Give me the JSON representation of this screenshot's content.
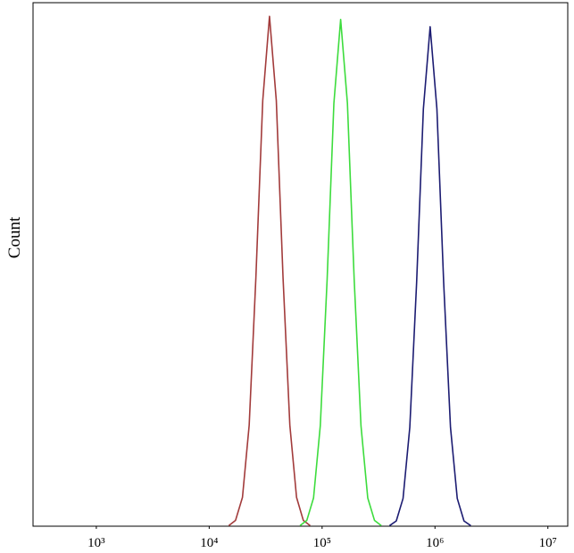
{
  "chart_data": {
    "type": "line",
    "y_label": "Count",
    "xscale": "log",
    "xlim": [
      275,
      15000000
    ],
    "ylim": [
      0,
      100
    ],
    "xticks": [
      {
        "value": 1000,
        "label": "10³"
      },
      {
        "value": 10000,
        "label": "10⁴"
      },
      {
        "value": 100000,
        "label": "10⁵"
      },
      {
        "value": 1000000,
        "label": "10⁶"
      },
      {
        "value": 10000000,
        "label": "10⁷"
      }
    ],
    "series": [
      {
        "color": "#a23b3b",
        "x": [
          14900,
          17100,
          19700,
          22600,
          25900,
          29800,
          34200,
          39300,
          45100,
          51800,
          59400,
          68200,
          78400
        ],
        "values": [
          0.1,
          1.1,
          5.5,
          19.3,
          47.4,
          81.3,
          97.4,
          81.3,
          47.4,
          19.3,
          5.5,
          1.1,
          0.1
        ]
      },
      {
        "color": "#3ddc3d",
        "x": [
          63700,
          73200,
          84000,
          96400,
          110800,
          127200,
          146000,
          167600,
          192400,
          221000,
          253700,
          291300,
          334500
        ],
        "values": [
          0.1,
          1.1,
          5.4,
          19.2,
          47.1,
          80.8,
          96.8,
          80.8,
          47.1,
          19.2,
          5.4,
          1.1,
          0.1
        ]
      },
      {
        "color": "#1c1c72",
        "x": [
          395500,
          454100,
          521300,
          598400,
          687400,
          789200,
          906000,
          1040000,
          1194000,
          1372000,
          1575000,
          1807000,
          2076000
        ],
        "values": [
          0.1,
          1.0,
          5.3,
          18.9,
          46.5,
          79.7,
          95.4,
          79.7,
          46.5,
          18.9,
          5.3,
          1.0,
          0.1
        ]
      }
    ]
  }
}
